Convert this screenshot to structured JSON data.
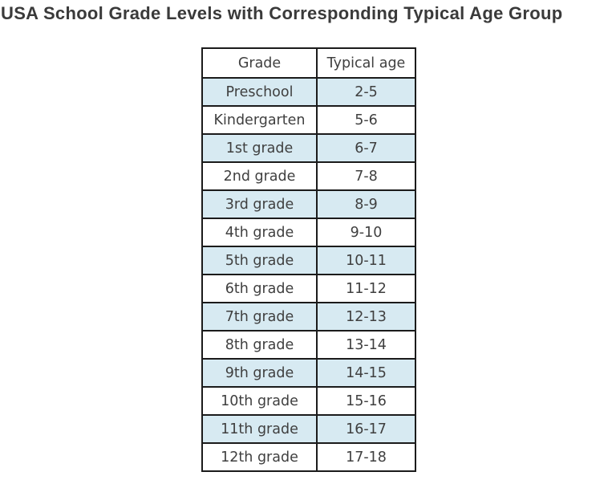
{
  "chart_data": {
    "type": "table",
    "title": "USA School Grade Levels with Corresponding Typical Age Group",
    "columns": [
      "Grade",
      "Typical age"
    ],
    "rows": [
      [
        "Preschool",
        "2-5"
      ],
      [
        "Kindergarten",
        "5-6"
      ],
      [
        "1st grade",
        "6-7"
      ],
      [
        "2nd grade",
        "7-8"
      ],
      [
        "3rd grade",
        "8-9"
      ],
      [
        "4th grade",
        "9-10"
      ],
      [
        "5th grade",
        "10-11"
      ],
      [
        "6th grade",
        "11-12"
      ],
      [
        "7th grade",
        "12-13"
      ],
      [
        "8th grade",
        "13-14"
      ],
      [
        "9th grade",
        "14-15"
      ],
      [
        "10th grade",
        "15-16"
      ],
      [
        "11th grade",
        "16-17"
      ],
      [
        "12th grade",
        "17-18"
      ]
    ],
    "layout": {
      "legend": "none",
      "grid": "table-borders",
      "highlight_pattern": "alternating-rows-starting-first-data-row"
    }
  },
  "colors": {
    "background": "#ffffff",
    "row_highlight": "#d7eaf2",
    "row_plain": "#ffffff",
    "border": "#1b1b1b",
    "text": "#3f3f3f",
    "title_text": "#3a3a3a"
  }
}
